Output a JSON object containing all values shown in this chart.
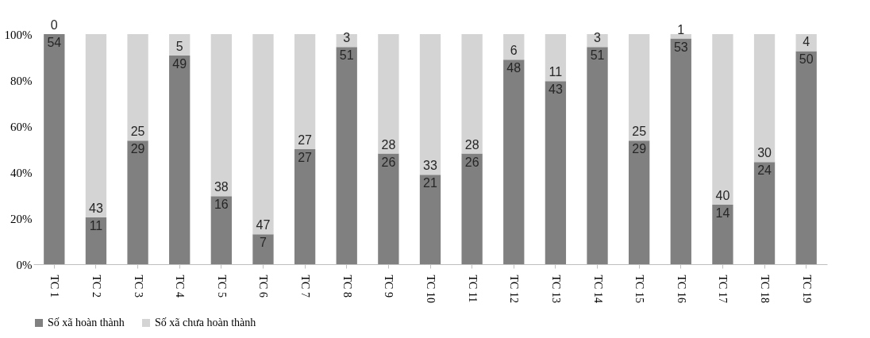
{
  "chart_data": {
    "type": "bar",
    "stacked": true,
    "grid": false,
    "legend": "bottom",
    "categories": [
      "TC 1",
      "TC 2",
      "TC 3",
      "TC 4",
      "TC 5",
      "TC 6",
      "TC 7",
      "TC 8",
      "TC 9",
      "TC 10",
      "TC 11",
      "TC 12",
      "TC 13",
      "TC 14",
      "TC 15",
      "TC 16",
      "TC 17",
      "TC 18",
      "TC 19"
    ],
    "ylim": [
      0,
      100
    ],
    "yticks": [
      {
        "value": 0,
        "label": "0%"
      },
      {
        "value": 20,
        "label": "20%"
      },
      {
        "value": 40,
        "label": "40%"
      },
      {
        "value": 60,
        "label": "60%"
      },
      {
        "value": 80,
        "label": "80%"
      },
      {
        "value": 100,
        "label": "100%"
      }
    ],
    "series": [
      {
        "name": "Số xã hoàn thành",
        "color": "#808080",
        "values": [
          100.0,
          20.4,
          53.7,
          90.7,
          29.6,
          13.0,
          50.0,
          94.4,
          48.1,
          38.9,
          48.1,
          88.9,
          79.6,
          94.4,
          53.7,
          98.1,
          25.9,
          44.4,
          92.6
        ]
      },
      {
        "name": "Số xã chưa hoàn thành",
        "color": "#d4d4d4",
        "values": [
          0.0,
          79.6,
          46.3,
          9.3,
          70.4,
          87.0,
          50.0,
          5.6,
          51.9,
          61.1,
          51.9,
          11.1,
          20.4,
          5.6,
          46.3,
          1.9,
          74.1,
          55.6,
          7.4
        ]
      }
    ],
    "annotations": [
      {
        "text": "54",
        "x": "TC 1",
        "y": 100.0
      },
      {
        "text": "11",
        "x": "TC 2",
        "y": 20.4
      },
      {
        "text": "29",
        "x": "TC 3",
        "y": 53.7
      },
      {
        "text": "49",
        "x": "TC 4",
        "y": 90.7
      },
      {
        "text": "16",
        "x": "TC 5",
        "y": 29.6
      },
      {
        "text": "7",
        "x": "TC 6",
        "y": 13.0
      },
      {
        "text": "27",
        "x": "TC 7",
        "y": 50.0
      },
      {
        "text": "51",
        "x": "TC 8",
        "y": 94.4
      },
      {
        "text": "26",
        "x": "TC 9",
        "y": 48.1
      },
      {
        "text": "21",
        "x": "TC 10",
        "y": 38.9
      },
      {
        "text": "26",
        "x": "TC 11",
        "y": 48.1
      },
      {
        "text": "48",
        "x": "TC 12",
        "y": 88.9
      },
      {
        "text": "43",
        "x": "TC 13",
        "y": 79.6
      },
      {
        "text": "51",
        "x": "TC 14",
        "y": 94.4
      },
      {
        "text": "29",
        "x": "TC 15",
        "y": 53.7
      },
      {
        "text": "53",
        "x": "TC 16",
        "y": 98.1
      },
      {
        "text": "14",
        "x": "TC 17",
        "y": 25.9
      },
      {
        "text": "24",
        "x": "TC 18",
        "y": 44.4
      },
      {
        "text": "50",
        "x": "TC 19",
        "y": 92.6
      },
      {
        "text": "0",
        "x": "TC 1",
        "y": 100.0
      },
      {
        "text": "43",
        "x": "TC 2",
        "y": 20.4
      },
      {
        "text": "25",
        "x": "TC 3",
        "y": 53.7
      },
      {
        "text": "5",
        "x": "TC 4",
        "y": 90.7
      },
      {
        "text": "38",
        "x": "TC 5",
        "y": 29.6
      },
      {
        "text": "47",
        "x": "TC 6",
        "y": 13.0
      },
      {
        "text": "27",
        "x": "TC 7",
        "y": 50.0
      },
      {
        "text": "3",
        "x": "TC 8",
        "y": 94.4
      },
      {
        "text": "28",
        "x": "TC 9",
        "y": 48.1
      },
      {
        "text": "33",
        "x": "TC 10",
        "y": 38.9
      },
      {
        "text": "28",
        "x": "TC 11",
        "y": 48.1
      },
      {
        "text": "6",
        "x": "TC 12",
        "y": 88.9
      },
      {
        "text": "11",
        "x": "TC 13",
        "y": 79.6
      },
      {
        "text": "3",
        "x": "TC 14",
        "y": 94.4
      },
      {
        "text": "25",
        "x": "TC 15",
        "y": 53.7
      },
      {
        "text": "1",
        "x": "TC 16",
        "y": 98.1
      },
      {
        "text": "40",
        "x": "TC 17",
        "y": 25.9
      },
      {
        "text": "30",
        "x": "TC 18",
        "y": 44.4
      },
      {
        "text": "4",
        "x": "TC 19",
        "y": 92.6
      }
    ]
  }
}
